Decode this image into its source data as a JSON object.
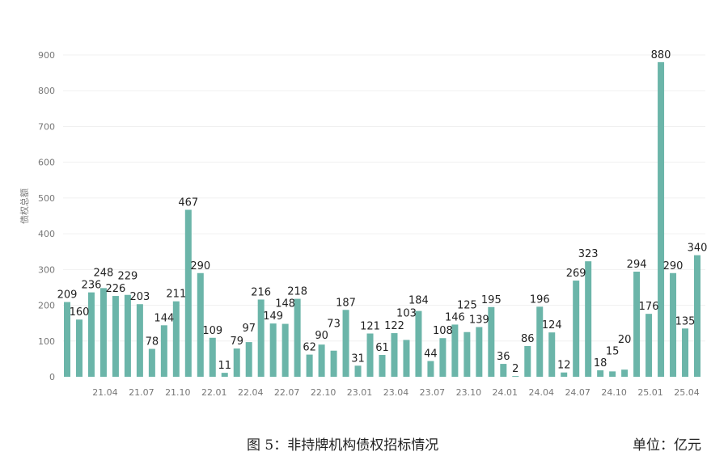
{
  "chart_data": {
    "type": "bar",
    "title": "",
    "ylabel": "债权总额",
    "xlabel": "",
    "ylim": [
      0,
      900
    ],
    "yticks": [
      0,
      100,
      200,
      300,
      400,
      500,
      600,
      700,
      800,
      900
    ],
    "grid": true,
    "bar_color": "#6bb5a9",
    "categories": [
      "21.01",
      "21.02",
      "21.03",
      "21.04",
      "21.05",
      "21.06",
      "21.07",
      "21.08",
      "21.09",
      "21.10",
      "21.11",
      "21.12",
      "22.01",
      "22.02",
      "22.03",
      "22.04",
      "22.05",
      "22.06",
      "22.07",
      "22.08",
      "22.09",
      "22.10",
      "22.11",
      "22.12",
      "23.01",
      "23.02",
      "23.03",
      "23.04",
      "23.05",
      "23.06",
      "23.07",
      "23.08",
      "23.09",
      "23.10",
      "23.11",
      "23.12",
      "24.01",
      "24.02",
      "24.03",
      "24.04",
      "24.05",
      "24.06",
      "24.07",
      "24.08",
      "24.09",
      "24.10",
      "24.11",
      "24.12",
      "25.01",
      "25.02",
      "25.03",
      "25.04",
      "25.05"
    ],
    "xtick_labels": [
      "21.04",
      "21.07",
      "21.10",
      "22.01",
      "22.04",
      "22.07",
      "22.10",
      "23.01",
      "23.04",
      "23.07",
      "23.10",
      "24.01",
      "24.04",
      "24.07",
      "24.10",
      "25.01",
      "25.04"
    ],
    "values": [
      209,
      160,
      236,
      248,
      226,
      229,
      203,
      78,
      144,
      211,
      467,
      290,
      109,
      11,
      79,
      97,
      216,
      149,
      148,
      218,
      62,
      90,
      73,
      187,
      31,
      121,
      61,
      122,
      103,
      184,
      44,
      108,
      146,
      125,
      139,
      195,
      36,
      2,
      86,
      196,
      124,
      12,
      269,
      323,
      18,
      15,
      20,
      294,
      176,
      880,
      290,
      135,
      340
    ]
  },
  "caption": {
    "figure": "图 5：非持牌机构债权招标情况",
    "unit": "单位：亿元"
  }
}
